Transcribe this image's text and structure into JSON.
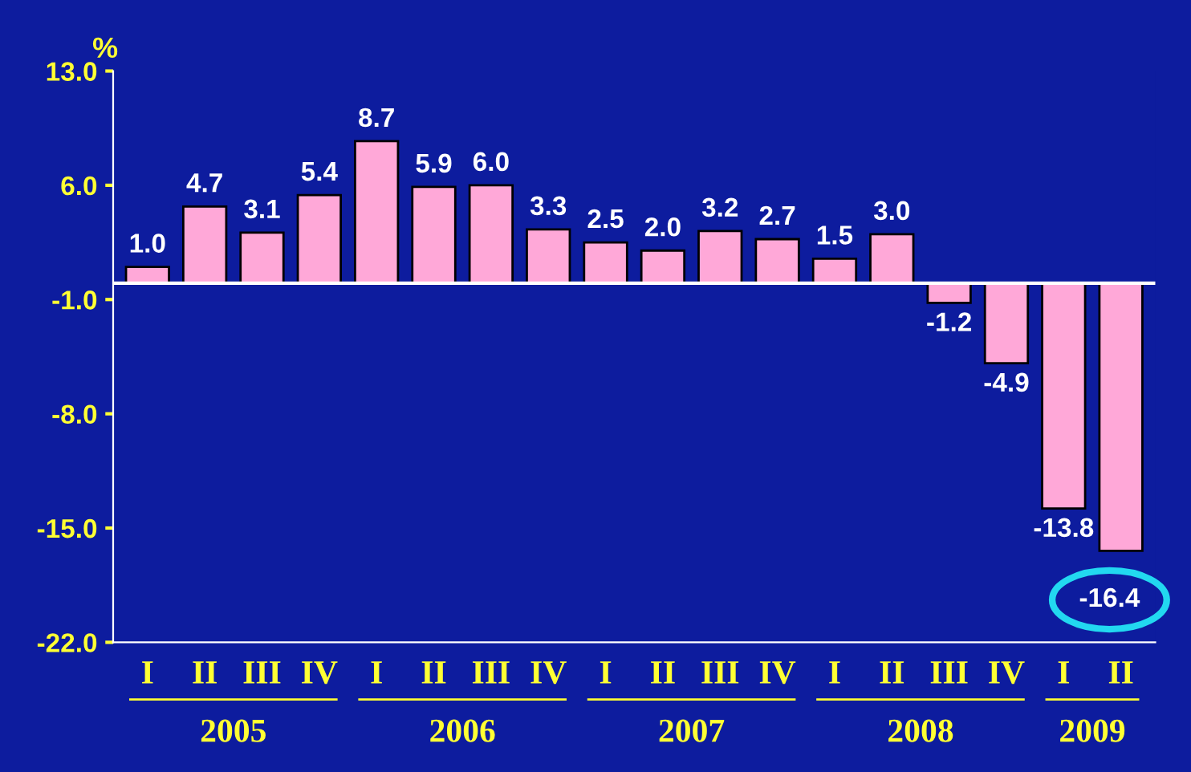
{
  "chart_data": {
    "type": "bar",
    "ylabel": "%",
    "categories": [
      "I",
      "II",
      "III",
      "IV",
      "I",
      "II",
      "III",
      "IV",
      "I",
      "II",
      "III",
      "IV",
      "I",
      "II",
      "III",
      "IV",
      "I",
      "II"
    ],
    "values": [
      1.0,
      4.7,
      3.1,
      5.4,
      8.7,
      5.9,
      6.0,
      3.3,
      2.5,
      2.0,
      3.2,
      2.7,
      1.5,
      3.0,
      -1.2,
      -4.9,
      -13.8,
      -16.4
    ],
    "value_labels": [
      "1.0",
      "4.7",
      "3.1",
      "5.4",
      "8.7",
      "5.9",
      "6.0",
      "3.3",
      "2.5",
      "2.0",
      "3.2",
      "2.7",
      "1.5",
      "3.0",
      "-1.2",
      "-4.9",
      "-13.8",
      "-16.4"
    ],
    "color": "#ffa8d8",
    "grid": false,
    "ylim": [
      -22,
      13
    ],
    "yticks": [
      {
        "value": -22,
        "label": "-22.0"
      },
      {
        "value": -15,
        "label": "-15.0"
      },
      {
        "value": -8,
        "label": "-8.0"
      },
      {
        "value": -1,
        "label": "-1.0"
      },
      {
        "value": 6,
        "label": "6.0"
      },
      {
        "value": 13,
        "label": "13.0"
      }
    ],
    "annotations": [
      "2005",
      "2006",
      "2007",
      "2008",
      "2009"
    ]
  }
}
